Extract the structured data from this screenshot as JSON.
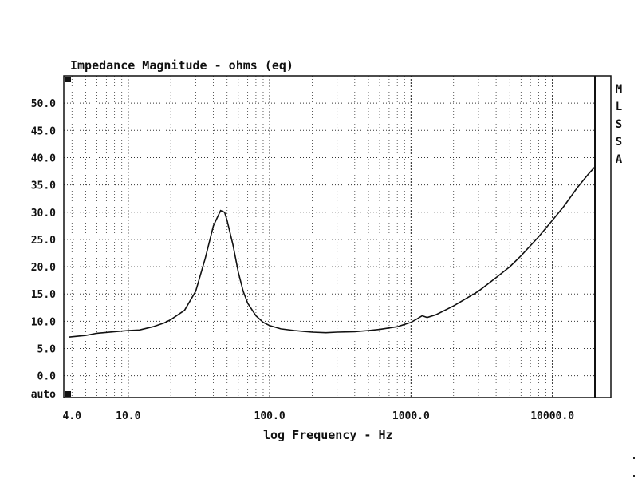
{
  "chart_data": {
    "type": "line",
    "title": "Impedance Magnitude - ohms (eq)",
    "xlabel": "log Frequency - Hz",
    "ylabel": "",
    "x_scale": "log",
    "xlim": [
      3.5,
      20000
    ],
    "ylim": [
      -4,
      55
    ],
    "x_ticks": [
      {
        "value": 4,
        "label": "4.0"
      },
      {
        "value": 10,
        "label": "10.0"
      },
      {
        "value": 100,
        "label": "100.0"
      },
      {
        "value": 1000,
        "label": "1000.0"
      },
      {
        "value": 10000,
        "label": "10000.0"
      }
    ],
    "y_ticks": [
      {
        "value": 50,
        "label": "50.0"
      },
      {
        "value": 45,
        "label": "45.0"
      },
      {
        "value": 40,
        "label": "40.0"
      },
      {
        "value": 35,
        "label": "35.0"
      },
      {
        "value": 30,
        "label": "30.0"
      },
      {
        "value": 25,
        "label": "25.0"
      },
      {
        "value": 20,
        "label": "20.0"
      },
      {
        "value": 15,
        "label": "15.0"
      },
      {
        "value": 10,
        "label": "10.0"
      },
      {
        "value": 5,
        "label": "5.0"
      },
      {
        "value": 0,
        "label": "0.0"
      }
    ],
    "y_bottom_label": "auto",
    "side_label": [
      "M",
      "L",
      "S",
      "S",
      "A"
    ],
    "grid": true,
    "series": [
      {
        "x": [
          3.8,
          5,
          6,
          8,
          10,
          12,
          15,
          18,
          20,
          25,
          30,
          35,
          40,
          45,
          48,
          50,
          55,
          60,
          65,
          70,
          80,
          90,
          100,
          120,
          150,
          200,
          250,
          300,
          400,
          500,
          600,
          800,
          1000,
          1100,
          1200,
          1300,
          1500,
          2000,
          3000,
          4000,
          5000,
          6000,
          8000,
          10000,
          12000,
          15000,
          18000,
          20000
        ],
        "y": [
          7.1,
          7.4,
          7.8,
          8.1,
          8.3,
          8.4,
          9.0,
          9.7,
          10.3,
          12.0,
          15.5,
          21.5,
          27.5,
          30.3,
          30.0,
          28.5,
          24.0,
          19.0,
          15.5,
          13.3,
          11.0,
          9.8,
          9.2,
          8.6,
          8.3,
          8.0,
          7.9,
          8.0,
          8.1,
          8.3,
          8.5,
          9.0,
          9.8,
          10.4,
          11.0,
          10.7,
          11.2,
          12.8,
          15.5,
          18.0,
          20.0,
          22.0,
          25.5,
          28.5,
          31.0,
          34.5,
          37.0,
          38.3
        ]
      }
    ]
  }
}
